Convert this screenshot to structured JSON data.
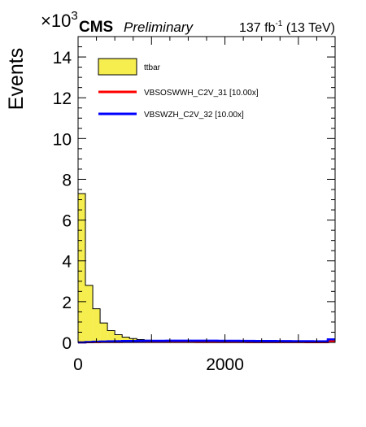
{
  "header": {
    "experiment": "CMS",
    "status": "Preliminary",
    "lumi": "137 fb",
    "lumi_exp": "-1",
    "energy": " (13 TeV)"
  },
  "chart_data": {
    "type": "histogram",
    "ylabel": "Events",
    "y_multiplier_base": "×10",
    "y_multiplier_exp": "3",
    "xlim": [
      0,
      3500
    ],
    "ylim": [
      0,
      15000
    ],
    "x_ticks": [
      0,
      2000
    ],
    "y_ticks": [
      0,
      2,
      4,
      6,
      8,
      10,
      12,
      14
    ],
    "bin_width": 100,
    "legend_position": "top-left",
    "series": [
      {
        "name": "ttbar",
        "style": "filled",
        "color": "#f5ee4e",
        "edge_color": "#000000",
        "values": [
          7300,
          2800,
          1650,
          950,
          580,
          380,
          260,
          190,
          140,
          110,
          85,
          70,
          60,
          52,
          46,
          40,
          36,
          32,
          29,
          26,
          24,
          22,
          20,
          18,
          17,
          16,
          15,
          14,
          13,
          12,
          11,
          10,
          10,
          9,
          9
        ]
      },
      {
        "name": "VBSOSWWH_C2V_31 [10.00x]",
        "style": "line",
        "color": "#ff0000",
        "values": [
          0,
          10,
          15,
          18,
          20,
          22,
          24,
          25,
          26,
          26,
          26,
          25,
          25,
          24,
          24,
          23,
          22,
          22,
          21,
          20,
          19,
          19,
          18,
          17,
          17,
          16,
          15,
          15,
          14,
          14,
          13,
          12,
          12,
          11,
          60
        ]
      },
      {
        "name": "VBSWZH_C2V_32 [10.00x]",
        "style": "line",
        "color": "#0000ff",
        "values": [
          0,
          20,
          35,
          45,
          55,
          62,
          68,
          72,
          75,
          78,
          80,
          82,
          83,
          84,
          85,
          85,
          85,
          84,
          83,
          82,
          80,
          78,
          76,
          74,
          72,
          70,
          68,
          66,
          64,
          62,
          60,
          58,
          56,
          54,
          150
        ]
      }
    ]
  },
  "colors": {
    "frame": "#000000",
    "background": "#ffffff"
  }
}
